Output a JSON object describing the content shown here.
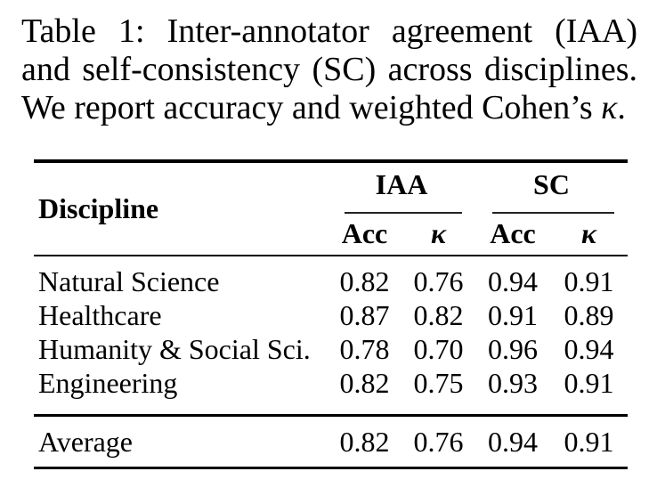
{
  "caption": {
    "line1": "Table 1: Inter-annotator agreement (IAA)",
    "line2": "and self-consistency (SC) across disciplines.",
    "line3_pre": "We report accuracy and weighted Cohen’s",
    "kappa_char": "κ",
    "line3_end": "."
  },
  "table": {
    "header": {
      "discipline_label": "Discipline",
      "group_iaa": "IAA",
      "group_sc": "SC",
      "sub_acc_iaa": "Acc",
      "sub_kappa_iaa": "κ",
      "sub_acc_sc": "Acc",
      "sub_kappa_sc": "κ"
    },
    "rows": [
      {
        "label": "Natural Science",
        "values": [
          "0.82",
          "0.76",
          "0.94",
          "0.91"
        ]
      },
      {
        "label": "Healthcare",
        "values": [
          "0.87",
          "0.82",
          "0.91",
          "0.89"
        ]
      },
      {
        "label": "Humanity & Social Sci.",
        "values": [
          "0.78",
          "0.70",
          "0.96",
          "0.94"
        ]
      },
      {
        "label": "Engineering",
        "values": [
          "0.82",
          "0.75",
          "0.93",
          "0.91"
        ]
      }
    ],
    "footer": {
      "label": "Average",
      "values": [
        "0.82",
        "0.76",
        "0.94",
        "0.91"
      ]
    }
  },
  "colors": {
    "text": "#000000",
    "background": "#ffffff",
    "rule": "#000000"
  }
}
